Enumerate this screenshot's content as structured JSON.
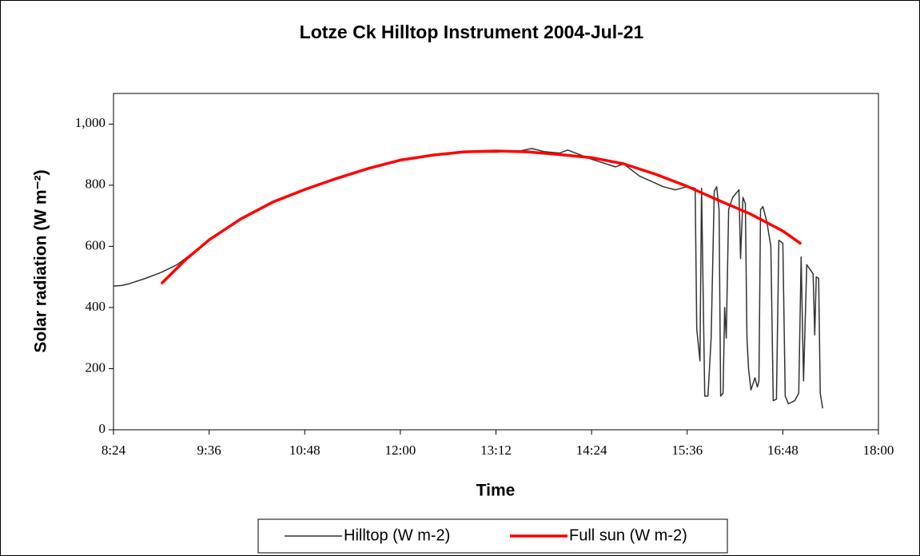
{
  "chart_data": {
    "type": "line",
    "title": "Lotze Ck Hilltop Instrument 2004-Jul-21",
    "x_label": "Time",
    "y_label": "Solar radiation (W m⁻²)",
    "xlim": [
      8.4,
      18
    ],
    "xticks": [
      {
        "value": 8.4,
        "label": "8:24"
      },
      {
        "value": 9.6,
        "label": "9:36"
      },
      {
        "value": 10.8,
        "label": "10:48"
      },
      {
        "value": 12,
        "label": "12:00"
      },
      {
        "value": 13.2,
        "label": "13:12"
      },
      {
        "value": 14.4,
        "label": "14:24"
      },
      {
        "value": 15.6,
        "label": "15:36"
      },
      {
        "value": 16.8,
        "label": "16:48"
      },
      {
        "value": 18,
        "label": "18:00"
      }
    ],
    "ylim": [
      0,
      1100
    ],
    "yticks": [
      0,
      200,
      400,
      600,
      800,
      {
        "value": 1000,
        "label": "1,000"
      }
    ],
    "legend": "bottom",
    "series": [
      {
        "name": "Hilltop (W m-2)",
        "color": "#333333",
        "x": [
          8.4,
          8.5,
          8.6,
          8.8,
          9.0,
          9.2,
          9.4,
          9.6,
          10.0,
          10.4,
          10.8,
          11.2,
          11.6,
          12.0,
          12.4,
          12.8,
          13.2,
          13.5,
          13.65,
          13.8,
          14.0,
          14.1,
          14.4,
          14.7,
          14.8,
          15.0,
          15.3,
          15.45,
          15.6,
          15.7,
          15.72,
          15.76,
          15.78,
          15.82,
          15.86,
          15.9,
          15.94,
          15.97,
          16.0,
          16.02,
          16.05,
          16.07,
          16.09,
          16.12,
          16.17,
          16.25,
          16.27,
          16.3,
          16.33,
          16.35,
          16.37,
          16.4,
          16.45,
          16.48,
          16.5,
          16.52,
          16.55,
          16.6,
          16.65,
          16.68,
          16.72,
          16.75,
          16.8,
          16.83,
          16.87,
          16.95,
          17.0,
          17.03,
          17.06,
          17.1,
          17.18,
          17.2,
          17.22,
          17.25,
          17.27,
          17.3
        ],
        "values": [
          470,
          472,
          478,
          495,
          515,
          540,
          580,
          621,
          690,
          745,
          786,
          825,
          855,
          880,
          898,
          908,
          908,
          912,
          920,
          910,
          905,
          915,
          885,
          860,
          870,
          830,
          795,
          785,
          795,
          790,
          330,
          225,
          790,
          110,
          110,
          300,
          780,
          795,
          720,
          110,
          120,
          400,
          300,
          720,
          760,
          785,
          560,
          760,
          740,
          300,
          200,
          130,
          170,
          140,
          160,
          720,
          730,
          680,
          600,
          95,
          100,
          620,
          610,
          110,
          85,
          95,
          120,
          565,
          160,
          540,
          510,
          310,
          500,
          495,
          120,
          70
        ]
      },
      {
        "name": "Full sun (W m-2)",
        "color": "#ff0000",
        "x": [
          9.0,
          9.3,
          9.6,
          10.0,
          10.4,
          10.8,
          11.2,
          11.6,
          12.0,
          12.4,
          12.8,
          13.2,
          13.6,
          14.0,
          14.4,
          14.8,
          15.2,
          15.6,
          16.0,
          16.4,
          16.8,
          17.03
        ],
        "values": [
          478,
          555,
          621,
          690,
          745,
          786,
          822,
          855,
          882,
          898,
          909,
          912,
          909,
          900,
          890,
          870,
          836,
          796,
          750,
          705,
          650,
          608
        ]
      }
    ]
  }
}
